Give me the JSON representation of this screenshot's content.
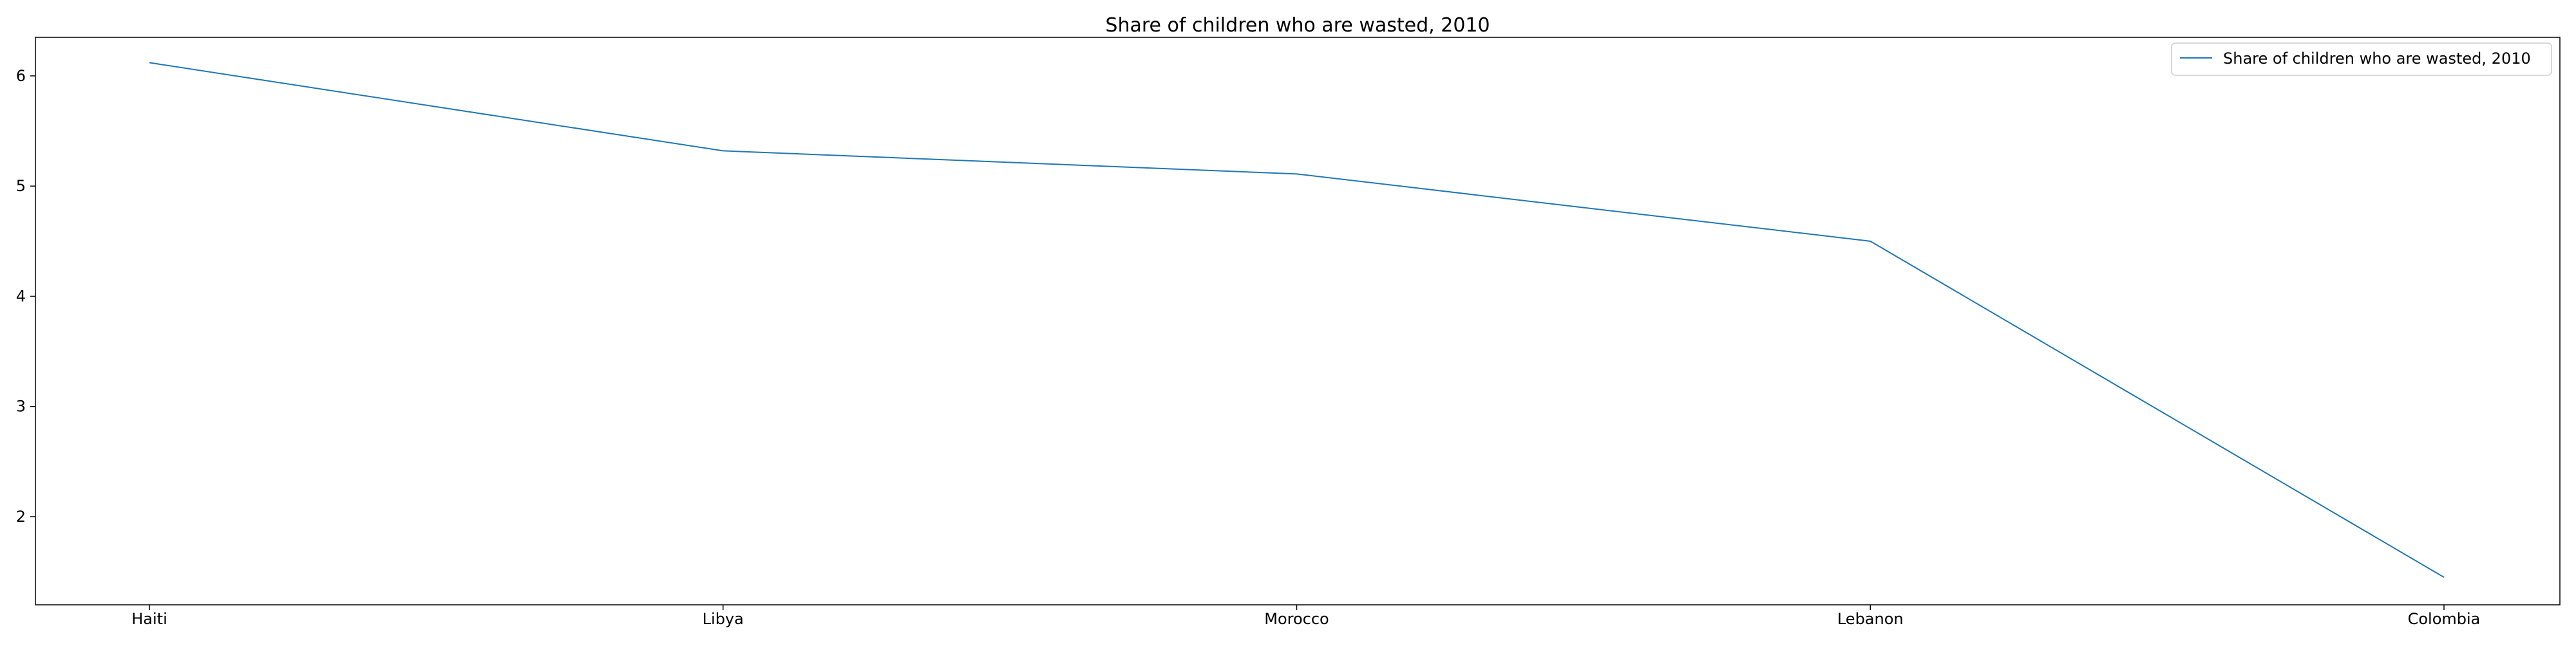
{
  "chart_data": {
    "type": "line",
    "title": "Share of children who are wasted, 2010",
    "xlabel": "",
    "ylabel": "",
    "categories": [
      "Haiti",
      "Libya",
      "Morocco",
      "Lebanon",
      "Colombia"
    ],
    "series": [
      {
        "name": "Share of children who are wasted, 2010",
        "values": [
          6.12,
          5.32,
          5.11,
          4.5,
          1.45
        ],
        "color": "#1f77b4"
      }
    ],
    "ylim": [
      1.2,
      6.35
    ],
    "yticks": [
      2,
      3,
      4,
      5,
      6
    ],
    "ytick_labels": [
      "2",
      "3",
      "4",
      "5",
      "6"
    ],
    "grid": false,
    "legend_position": "top-right"
  }
}
